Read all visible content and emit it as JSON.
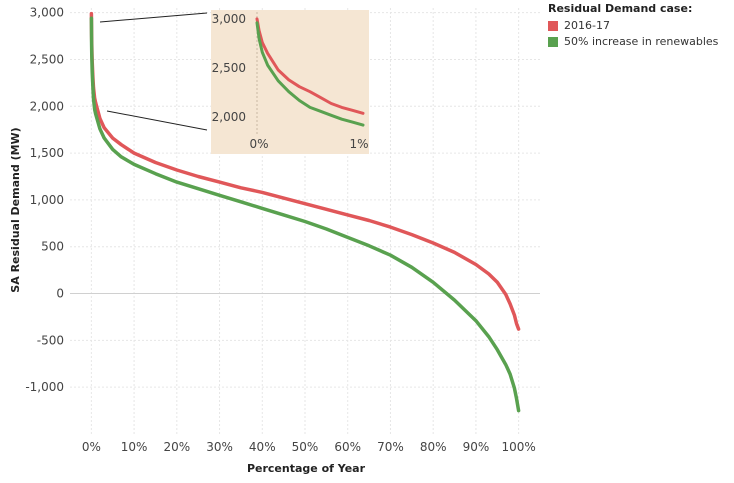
{
  "chart_data": {
    "type": "line",
    "xlabel": "Percentage of Year",
    "ylabel": "SA Residual Demand (MW)",
    "xlim": [
      -5,
      105
    ],
    "ylim": [
      -1500,
      3050
    ],
    "x_ticks": [
      "0%",
      "10%",
      "20%",
      "30%",
      "40%",
      "50%",
      "60%",
      "70%",
      "80%",
      "90%",
      "100%"
    ],
    "y_ticks": [
      "3,000",
      "2,500",
      "2,000",
      "1,500",
      "1,000",
      "500",
      "0",
      "-500",
      "-1,000"
    ],
    "y_tick_values": [
      3000,
      2500,
      2000,
      1500,
      1000,
      500,
      0,
      -500,
      -1000
    ],
    "grid": true,
    "legend": {
      "title": "Residual Demand case:",
      "position": "top-right"
    },
    "series": [
      {
        "name": "2016-17",
        "color": "#e05759",
        "x": [
          0,
          0.05,
          0.1,
          0.2,
          0.35,
          0.5,
          0.75,
          1,
          2,
          3,
          5,
          7,
          10,
          15,
          20,
          25,
          30,
          35,
          40,
          45,
          50,
          55,
          60,
          65,
          70,
          75,
          80,
          85,
          90,
          93,
          95,
          97,
          98,
          99,
          99.5,
          100
        ],
        "values": [
          2990,
          2760,
          2650,
          2480,
          2310,
          2200,
          2090,
          2040,
          1870,
          1770,
          1660,
          1590,
          1500,
          1400,
          1320,
          1250,
          1190,
          1130,
          1080,
          1020,
          960,
          900,
          840,
          780,
          710,
          630,
          540,
          440,
          310,
          210,
          120,
          -10,
          -110,
          -230,
          -320,
          -380
        ]
      },
      {
        "name": "50% increase in renewables",
        "color": "#59a14f",
        "x": [
          0,
          0.05,
          0.1,
          0.2,
          0.35,
          0.5,
          0.75,
          1,
          2,
          3,
          5,
          7,
          10,
          15,
          20,
          25,
          30,
          35,
          40,
          45,
          50,
          55,
          60,
          65,
          70,
          75,
          80,
          85,
          90,
          93,
          95,
          97,
          98,
          99,
          99.5,
          100
        ],
        "values": [
          2940,
          2660,
          2530,
          2370,
          2200,
          2080,
          1970,
          1920,
          1760,
          1660,
          1540,
          1460,
          1380,
          1280,
          1190,
          1120,
          1050,
          980,
          910,
          840,
          770,
          690,
          600,
          510,
          410,
          280,
          120,
          -70,
          -290,
          -460,
          -600,
          -760,
          -860,
          -1010,
          -1120,
          -1250
        ]
      }
    ],
    "inset": {
      "xlim": [
        0,
        1
      ],
      "ylim": [
        1870,
        3050
      ],
      "x_ticks": [
        "0%",
        "1%"
      ],
      "y_ticks": [
        "3,000",
        "2,500",
        "2,000"
      ],
      "y_tick_values": [
        3000,
        2500,
        2000
      ],
      "background": "#f5e6d3",
      "series": [
        {
          "name": "2016-17",
          "color": "#e05759",
          "x": [
            0,
            0.02,
            0.05,
            0.1,
            0.2,
            0.3,
            0.4,
            0.5,
            0.6,
            0.7,
            0.8,
            0.9,
            1.0
          ],
          "values": [
            3000,
            2880,
            2760,
            2650,
            2480,
            2380,
            2310,
            2260,
            2200,
            2140,
            2100,
            2070,
            2040
          ]
        },
        {
          "name": "50% increase in renewables",
          "color": "#59a14f",
          "x": [
            0,
            0.02,
            0.05,
            0.1,
            0.2,
            0.3,
            0.4,
            0.5,
            0.6,
            0.7,
            0.8,
            0.9,
            1.0
          ],
          "values": [
            2960,
            2800,
            2660,
            2530,
            2370,
            2260,
            2170,
            2100,
            2060,
            2020,
            1980,
            1950,
            1920
          ]
        }
      ]
    }
  }
}
